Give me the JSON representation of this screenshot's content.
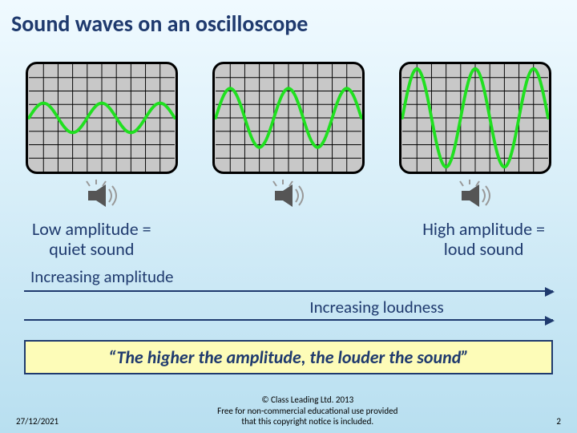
{
  "title": "Sound waves on an oscilloscope",
  "scopes": {
    "grid": {
      "cols": 10,
      "rows": 8,
      "bg": "#c8c8c8",
      "line": "#000000",
      "border_radius": 14
    },
    "wave": {
      "color": "#20e020",
      "stroke_width": 4,
      "frequency_cycles": 2.5
    },
    "amplitudes_fraction_of_half_height": [
      0.3,
      0.6,
      1.0
    ]
  },
  "captions": {
    "left_top": "Low amplitude  =",
    "left_bottom": "quiet sound",
    "right_top": "High amplitude =",
    "right_bottom": "loud sound"
  },
  "arrows": {
    "label_top": "Increasing amplitude",
    "label_bottom": "Increasing loudness",
    "color": "#1f3a6e"
  },
  "quote": "“The higher the amplitude, the louder the sound”",
  "footer": {
    "date": "27/12/2021",
    "copyright_l1": "© Class Leading Ltd. 2013",
    "copyright_l2": "Free for non-commercial educational use provided",
    "copyright_l3": "that this copyright notice is included.",
    "page": "2"
  },
  "speaker_icon": {
    "body": "#555555",
    "waves": "#999999"
  }
}
